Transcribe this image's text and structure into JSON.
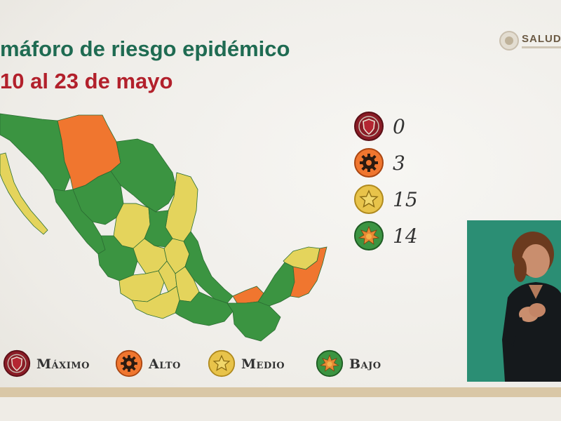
{
  "title": {
    "line1": "máforo de riesgo epidémico",
    "line2": "10 al 23 de mayo"
  },
  "logo": {
    "text": "SALUD"
  },
  "colors": {
    "maximo": "#8a1c26",
    "alto": "#f0762f",
    "medio": "#e4d45c",
    "bajo": "#3b9441",
    "title_green": "#1f6b52",
    "title_red": "#b2202b"
  },
  "counts": [
    {
      "level": "maximo",
      "icon": "shield-icon",
      "value": "0"
    },
    {
      "level": "alto",
      "icon": "gear-icon",
      "value": "3"
    },
    {
      "level": "medio",
      "icon": "star-icon",
      "value": "15"
    },
    {
      "level": "bajo",
      "icon": "sun-icon",
      "value": "14"
    }
  ],
  "legend": [
    {
      "level": "maximo",
      "icon": "shield-icon",
      "label": "Máximo"
    },
    {
      "level": "alto",
      "icon": "gear-icon",
      "label": "Alto"
    },
    {
      "level": "medio",
      "icon": "star-icon",
      "label": "Medio"
    },
    {
      "level": "bajo",
      "icon": "sun-icon",
      "label": "Bajo"
    }
  ]
}
